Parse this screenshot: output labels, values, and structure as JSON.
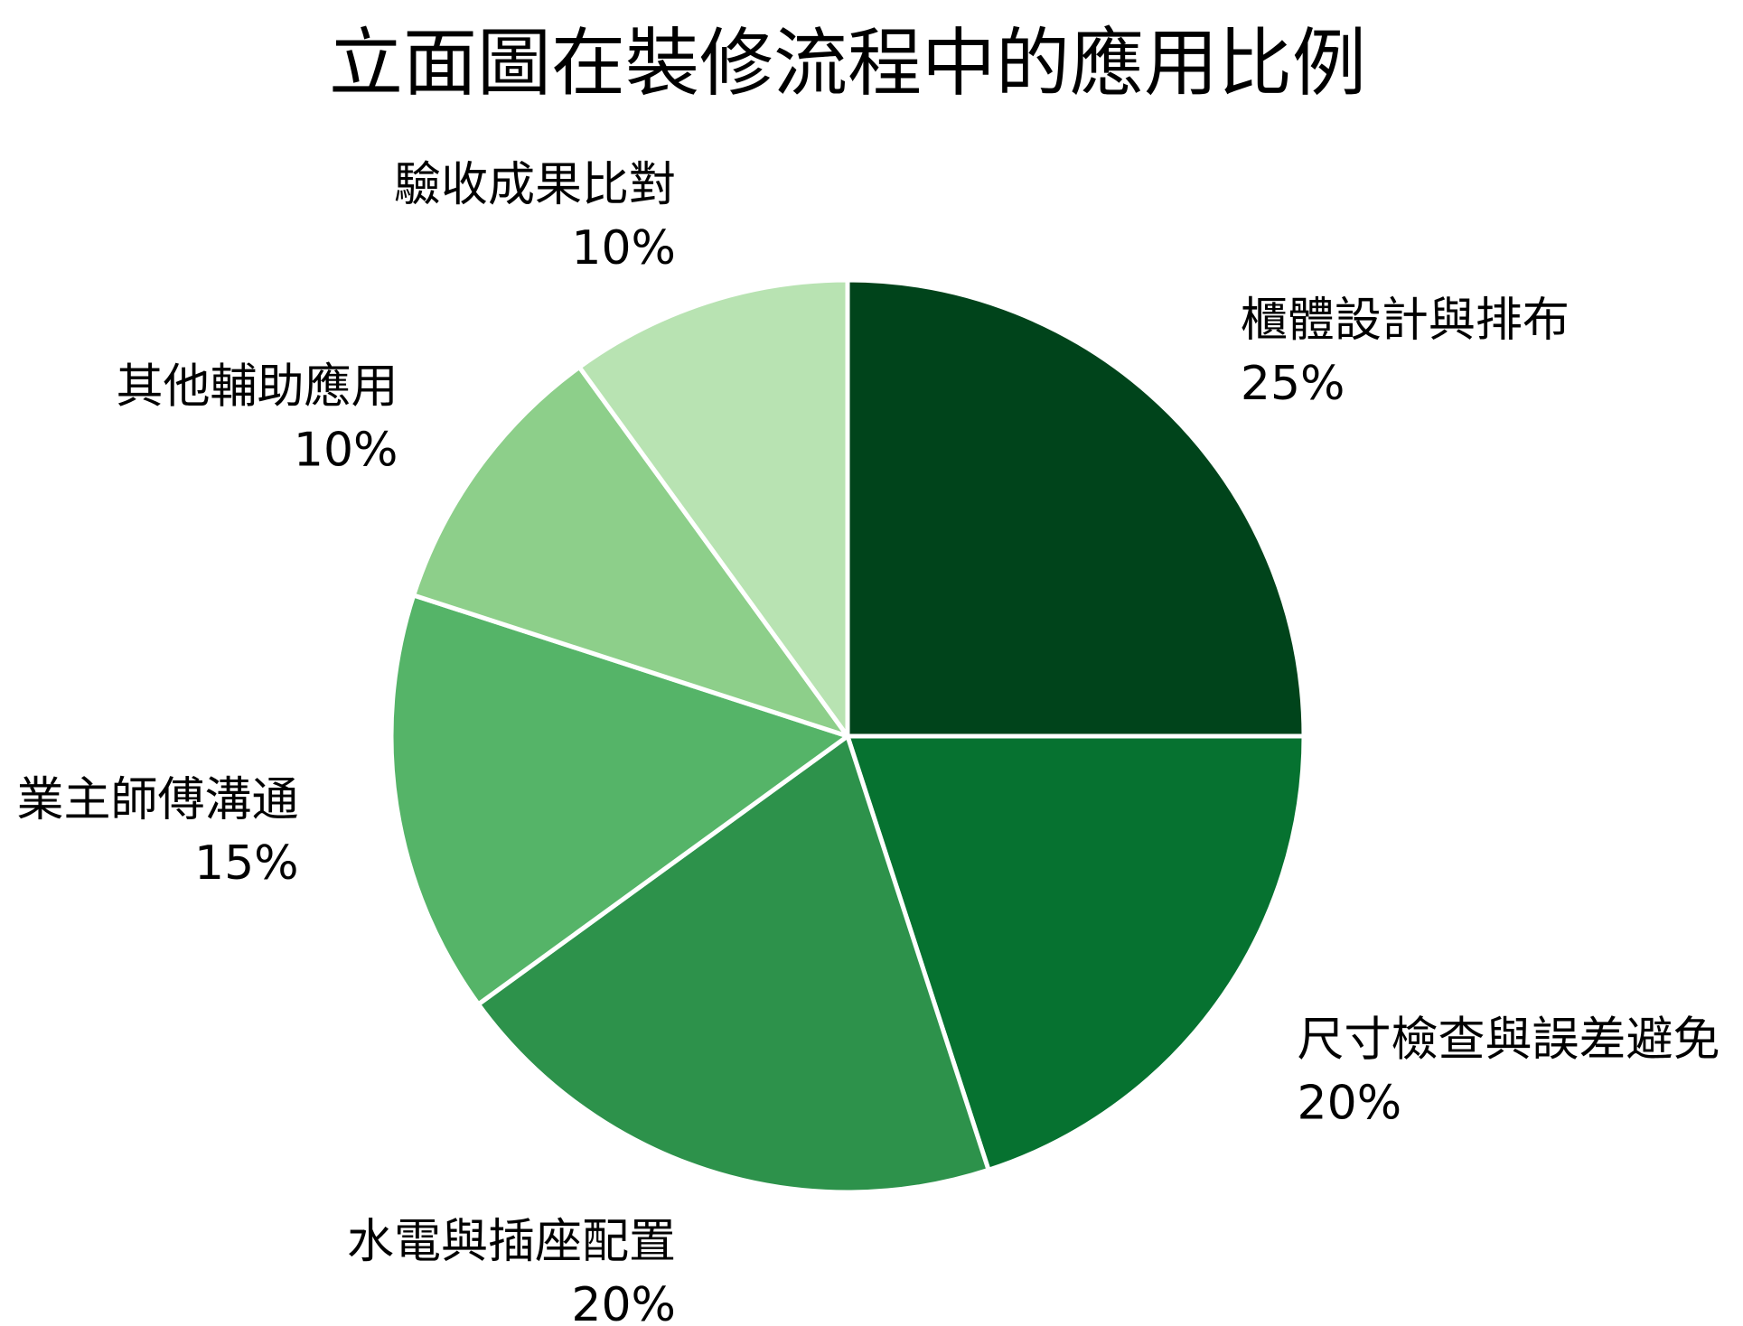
{
  "chart_data": {
    "type": "pie",
    "title": "立面圖在裝修流程中的應用比例",
    "start": "12 o'clock",
    "direction": "clockwise",
    "slices": [
      {
        "label": "櫃體設計與排布",
        "value": 25,
        "value_label": "25%",
        "color": "#00441b"
      },
      {
        "label": "尺寸檢查與誤差避免",
        "value": 20,
        "value_label": "20%",
        "color": "#067230"
      },
      {
        "label": "水電與插座配置",
        "value": 20,
        "value_label": "20%",
        "color": "#2d924b"
      },
      {
        "label": "業主師傅溝通",
        "value": 15,
        "value_label": "15%",
        "color": "#55b468"
      },
      {
        "label": "其他輔助應用",
        "value": 10,
        "value_label": "10%",
        "color": "#8dcf8a"
      },
      {
        "label": "驗收成果比對",
        "value": 10,
        "value_label": "10%",
        "color": "#b8e3b2"
      }
    ]
  }
}
